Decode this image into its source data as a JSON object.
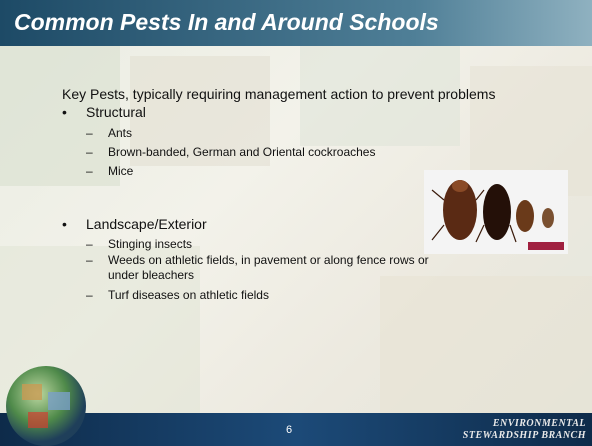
{
  "header": {
    "title": "Common Pests In and Around Schools"
  },
  "intro": "Key Pests, typically requiring management action to prevent problems",
  "sections": [
    {
      "label": "Structural",
      "items": [
        "Ants",
        "Brown-banded, German and Oriental cockroaches",
        "Mice"
      ]
    },
    {
      "label": "Landscape/Exterior",
      "items": [
        "Stinging insects",
        "Weeds on athletic fields, in pavement or along fence rows or under bleachers",
        "Turf diseases on athletic fields"
      ]
    }
  ],
  "footer": {
    "page_number": "6",
    "brand": [
      "ENVIRONMENTAL",
      "STEWARDSHIP BRANCH"
    ]
  }
}
